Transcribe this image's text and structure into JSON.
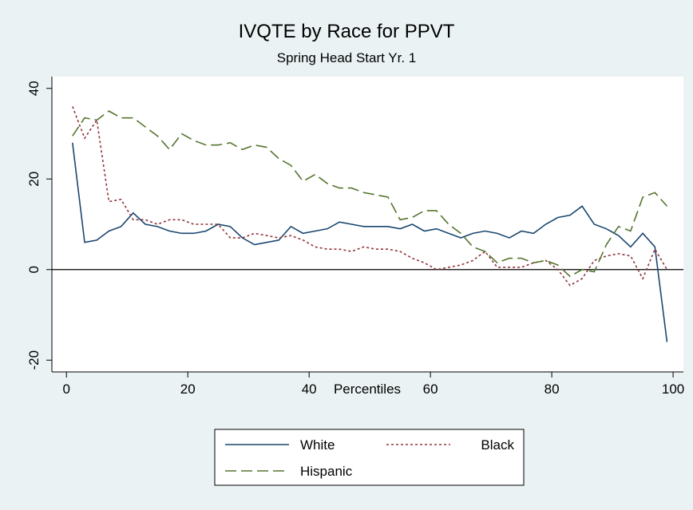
{
  "chart_data": {
    "type": "line",
    "title": "IVQTE by Race for PPVT",
    "subtitle": "Spring Head Start Yr. 1",
    "x_label": "Percentiles",
    "x": [
      1,
      3,
      5,
      7,
      9,
      11,
      13,
      15,
      17,
      19,
      21,
      23,
      25,
      27,
      29,
      31,
      33,
      35,
      37,
      39,
      41,
      43,
      45,
      47,
      49,
      51,
      53,
      55,
      57,
      59,
      61,
      63,
      65,
      67,
      69,
      71,
      73,
      75,
      77,
      79,
      81,
      83,
      85,
      87,
      89,
      91,
      93,
      95,
      97,
      99
    ],
    "series": [
      {
        "name": "White",
        "color": "#1a476f",
        "dash": "solid",
        "values": [
          28,
          6,
          6.5,
          8.5,
          9.5,
          12.5,
          10,
          9.5,
          8.5,
          8,
          8,
          8.5,
          10,
          9.5,
          7,
          5.5,
          6,
          6.5,
          9.5,
          8,
          8.5,
          9,
          10.5,
          10,
          9.5,
          9.5,
          9.5,
          9,
          10,
          8.5,
          9,
          8,
          7,
          8,
          8.5,
          8,
          7,
          8.5,
          8,
          10,
          11.5,
          12,
          14,
          10,
          9,
          7.5,
          5,
          8,
          5,
          -16
        ]
      },
      {
        "name": "Black",
        "color": "#90353b",
        "dash": "short",
        "values": [
          36,
          29,
          33,
          15,
          15.5,
          11,
          11,
          10,
          11,
          11,
          10,
          10,
          10,
          7,
          7,
          8,
          7.5,
          7,
          7.5,
          6.5,
          5,
          4.5,
          4.5,
          4,
          5,
          4.5,
          4.5,
          4,
          2.5,
          1.5,
          0,
          0.5,
          1,
          2,
          4,
          0.5,
          0.5,
          0.5,
          1.5,
          2,
          0,
          -3.5,
          -2,
          2,
          3,
          3.5,
          3,
          -2,
          4.5,
          0
        ]
      },
      {
        "name": "Hispanic",
        "color": "#55752f",
        "dash": "long",
        "values": [
          29.5,
          33.5,
          33,
          35,
          33.5,
          33.5,
          31.5,
          29.5,
          26.5,
          30,
          28.5,
          27.5,
          27.5,
          28,
          26.5,
          27.5,
          27,
          24.5,
          23,
          19.5,
          21,
          19,
          18,
          18,
          17,
          16.5,
          16,
          11,
          11.5,
          13,
          13,
          10,
          8,
          5,
          4,
          1.5,
          2.5,
          2.5,
          1.5,
          2,
          1,
          -1.5,
          0,
          -0.5,
          5.5,
          9.5,
          8.5,
          16,
          17,
          14
        ]
      }
    ],
    "xlim": [
      -2.4,
      101.7
    ],
    "xticks": [
      0,
      20,
      40,
      60,
      80,
      100
    ],
    "ylim": [
      -22.6,
      42.6
    ],
    "yticks": [
      -20,
      0,
      20,
      40
    ],
    "reference_line": 0,
    "grid": false,
    "legend_position": "bottom"
  }
}
